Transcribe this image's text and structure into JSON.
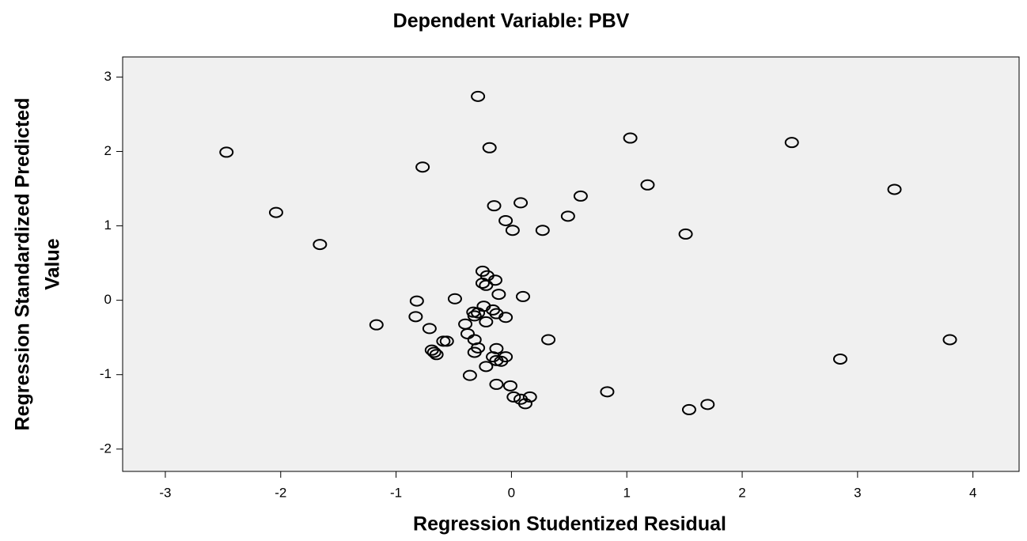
{
  "chart_data": {
    "type": "scatter",
    "title": "Dependent Variable: PBV",
    "x_label": "Regression Studentized Residual",
    "y_label": [
      "Regression Standardized Predicted",
      "Value"
    ],
    "color": "#000000",
    "background": "#f0f0f0",
    "xlim": [
      -3.37,
      4.4
    ],
    "ylim": [
      -2.3,
      3.27
    ],
    "xticks": [
      -3,
      -2,
      -1,
      0,
      1,
      2,
      3,
      4
    ],
    "yticks": [
      -2,
      -1,
      0,
      1,
      2,
      3
    ],
    "x": [
      -0.29,
      -2.47,
      -0.19,
      1.03,
      2.43,
      -0.77,
      -2.04,
      -0.15,
      0.08,
      0.6,
      1.18,
      3.32,
      0.49,
      -0.05,
      0.01,
      0.27,
      1.51,
      -1.66,
      -0.25,
      -0.21,
      -0.14,
      -0.25,
      -0.22,
      -0.11,
      0.1,
      -0.49,
      -0.82,
      -0.24,
      -0.16,
      -0.33,
      -0.29,
      -0.32,
      -0.13,
      -0.05,
      -0.83,
      -0.22,
      -1.17,
      -0.4,
      -0.71,
      -0.38,
      -0.32,
      -0.56,
      -0.59,
      0.32,
      -0.29,
      -0.13,
      -0.69,
      -0.67,
      -0.65,
      -0.32,
      -0.16,
      -0.13,
      -0.05,
      -0.09,
      -0.22,
      3.8,
      2.85,
      -0.36,
      -0.13,
      -0.01,
      0.83,
      0.02,
      0.16,
      0.08,
      0.12,
      1.7,
      1.54
    ],
    "y": [
      2.74,
      1.99,
      2.05,
      2.18,
      2.12,
      1.79,
      1.18,
      1.27,
      1.31,
      1.4,
      1.55,
      1.49,
      1.13,
      1.07,
      0.94,
      0.94,
      0.89,
      0.75,
      0.39,
      0.33,
      0.27,
      0.23,
      0.2,
      0.08,
      0.05,
      0.02,
      -0.01,
      -0.08,
      -0.13,
      -0.16,
      -0.17,
      -0.21,
      -0.18,
      -0.23,
      -0.22,
      -0.29,
      -0.33,
      -0.32,
      -0.38,
      -0.45,
      -0.53,
      -0.55,
      -0.55,
      -0.53,
      -0.64,
      -0.65,
      -0.67,
      -0.7,
      -0.73,
      -0.7,
      -0.76,
      -0.81,
      -0.76,
      -0.82,
      -0.89,
      -0.53,
      -0.79,
      -1.01,
      -1.13,
      -1.15,
      -1.23,
      -1.3,
      -1.3,
      -1.33,
      -1.39,
      -1.4,
      -1.47
    ]
  }
}
